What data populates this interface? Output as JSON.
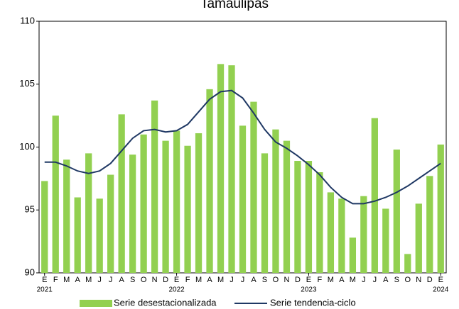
{
  "chart_data": {
    "type": "bar_line",
    "title": "Tamaulipas",
    "categories": [
      "E",
      "F",
      "M",
      "A",
      "M",
      "J",
      "J",
      "A",
      "S",
      "O",
      "N",
      "D",
      "E",
      "F",
      "M",
      "A",
      "M",
      "J",
      "J",
      "A",
      "S",
      "O",
      "N",
      "D",
      "E",
      "F",
      "M",
      "A",
      "M",
      "J",
      "J",
      "A",
      "S",
      "O",
      "N",
      "D",
      "E"
    ],
    "years": [
      "2021",
      null,
      null,
      null,
      null,
      null,
      null,
      null,
      null,
      null,
      null,
      null,
      "2022",
      null,
      null,
      null,
      null,
      null,
      null,
      null,
      null,
      null,
      null,
      null,
      "2023",
      null,
      null,
      null,
      null,
      null,
      null,
      null,
      null,
      null,
      null,
      null,
      "2024"
    ],
    "series": [
      {
        "name": "Serie desestacionalizada",
        "type": "bar",
        "color": "#92d050",
        "values": [
          97.3,
          102.5,
          99.0,
          96.0,
          99.5,
          95.9,
          97.8,
          102.6,
          99.4,
          101.0,
          103.7,
          100.5,
          101.3,
          100.1,
          101.1,
          104.6,
          106.6,
          106.5,
          101.7,
          103.6,
          99.5,
          101.4,
          100.5,
          98.9,
          98.9,
          98.0,
          96.4,
          95.9,
          92.8,
          96.1,
          102.3,
          95.1,
          99.8,
          91.5,
          95.5,
          97.7,
          100.2
        ]
      },
      {
        "name": "Serie tendencia-ciclo",
        "type": "line",
        "color": "#1f3864",
        "values": [
          98.8,
          98.8,
          98.5,
          98.1,
          97.9,
          98.1,
          98.7,
          99.7,
          100.7,
          101.3,
          101.4,
          101.2,
          101.3,
          101.8,
          102.8,
          103.8,
          104.4,
          104.5,
          103.9,
          102.7,
          101.4,
          100.4,
          99.9,
          99.3,
          98.6,
          97.8,
          96.8,
          96.0,
          95.5,
          95.5,
          95.7,
          96.0,
          96.4,
          96.9,
          97.5,
          98.1,
          98.7
        ]
      }
    ],
    "ylim": [
      90,
      110
    ],
    "yticks": [
      90,
      95,
      100,
      105,
      110
    ],
    "grid": false
  }
}
